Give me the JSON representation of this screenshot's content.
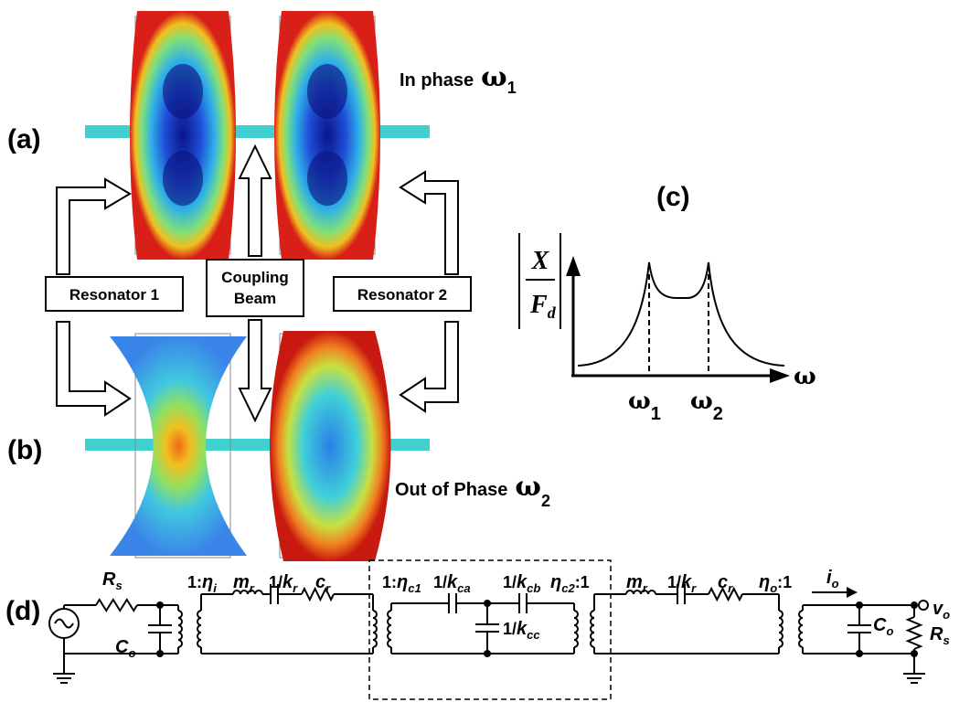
{
  "panels": {
    "a": "(a)",
    "b": "(b)",
    "c": "(c)",
    "d": "(d)"
  },
  "modes": [
    {
      "text": "In phase",
      "symbol": "ω",
      "sub": "1"
    },
    {
      "text": "Out of Phase",
      "symbol": "ω",
      "sub": "2"
    }
  ],
  "boxes": [
    {
      "lines": [
        "Resonator 1"
      ]
    },
    {
      "lines": [
        "Coupling",
        "Beam"
      ]
    },
    {
      "lines": [
        "Resonator 2"
      ]
    }
  ],
  "graph": {
    "numerator": "X",
    "denominator": "F",
    "denominator_sub": "d",
    "x_axis": "ω",
    "peaks": [
      {
        "symbol": "ω",
        "sub": "1"
      },
      {
        "symbol": "ω",
        "sub": "2"
      }
    ]
  },
  "circuit": {
    "labels": [
      {
        "main": "R",
        "sub": "s"
      },
      {
        "main": "C",
        "sub": "o"
      },
      {
        "pre": "1:",
        "main": "η",
        "sub": "i"
      },
      {
        "main": "m",
        "sub": "r"
      },
      {
        "pre": "1/",
        "main": "k",
        "sub": "r"
      },
      {
        "main": "c",
        "sub": "r"
      },
      {
        "pre": "1:",
        "main": "η",
        "sub": "c1"
      },
      {
        "pre": "1/",
        "main": "k",
        "sub": "ca"
      },
      {
        "pre": "1/",
        "main": "k",
        "sub": "cb"
      },
      {
        "pre": "1/",
        "main": "k",
        "sub": "cc"
      },
      {
        "main": "η",
        "sub": "c2",
        "post": ":1"
      },
      {
        "main": "m",
        "sub": "r"
      },
      {
        "pre": "1/",
        "main": "k",
        "sub": "r"
      },
      {
        "main": "c",
        "sub": "r"
      },
      {
        "main": "η",
        "sub": "o",
        "post": ":1"
      },
      {
        "main": "i",
        "sub": "o"
      },
      {
        "main": "v",
        "sub": "o"
      },
      {
        "main": "C",
        "sub": "o"
      },
      {
        "main": "R",
        "sub": "s"
      }
    ]
  }
}
